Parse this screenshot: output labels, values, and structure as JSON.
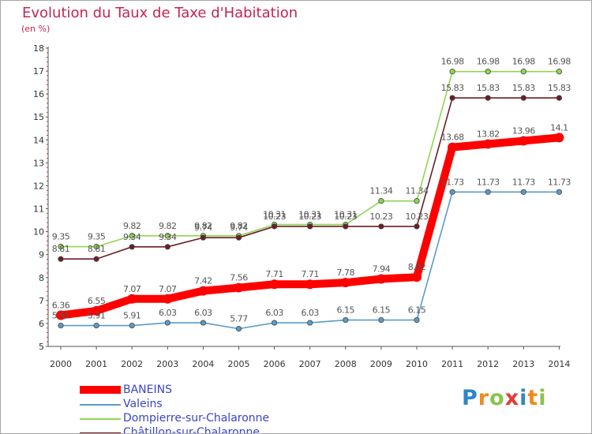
{
  "header": {
    "title": "Evolution du Taux de Taxe d'Habitation",
    "subtitle": "(en %)"
  },
  "logo": {
    "letters": [
      "P",
      "r",
      "o",
      "x",
      "i",
      "t",
      "i"
    ]
  },
  "chart_data": {
    "type": "line",
    "x": [
      "2000",
      "2001",
      "2002",
      "2003",
      "2004",
      "2005",
      "2006",
      "2007",
      "2008",
      "2009",
      "2010",
      "2011",
      "2012",
      "2013",
      "2014"
    ],
    "yticks": [
      "5",
      "6",
      "7",
      "8",
      "9",
      "10",
      "11",
      "12",
      "13",
      "14",
      "15",
      "16",
      "17",
      "18"
    ],
    "ylim": [
      5,
      18
    ],
    "grid": false,
    "legend_position": "bottom-left",
    "series": [
      {
        "name": "BANEINS",
        "color": "#ff0000",
        "values": [
          6.36,
          6.55,
          7.07,
          7.07,
          7.42,
          7.56,
          7.71,
          7.71,
          7.78,
          7.94,
          8.02,
          13.68,
          13.82,
          13.96,
          14.1
        ],
        "labels": [
          "6.36",
          "6.55",
          "7.07",
          "7.07",
          "7.42",
          "7.56",
          "7.71",
          "7.71",
          "7.78",
          "7.94",
          "8.02",
          "13.68",
          "13.82",
          "13.96",
          "14.1"
        ]
      },
      {
        "name": "Valeins",
        "color": "#5b9bc9",
        "values": [
          5.91,
          5.91,
          5.91,
          6.03,
          6.03,
          5.77,
          6.03,
          6.03,
          6.15,
          6.15,
          6.15,
          11.73,
          11.73,
          11.73,
          11.73
        ],
        "labels": [
          "5.91",
          "5.91",
          "5.91",
          "6.03",
          "6.03",
          "5.77",
          "6.03",
          "6.03",
          "6.15",
          "6.15",
          "6.15",
          "11.73",
          "11.73",
          "11.73",
          "11.73"
        ]
      },
      {
        "name": "Dompierre-sur-Chalaronne",
        "color": "#8fd653",
        "values": [
          9.35,
          9.35,
          9.82,
          9.82,
          9.82,
          9.82,
          10.31,
          10.31,
          10.31,
          11.34,
          11.34,
          16.98,
          16.98,
          16.98,
          16.98
        ],
        "labels": [
          "9.35",
          "9.35",
          "9.82",
          "9.82",
          "9.82",
          "9.82",
          "10.31",
          "10.31",
          "10.31",
          "11.34",
          "11.34",
          "16.98",
          "16.98",
          "16.98",
          "16.98"
        ]
      },
      {
        "name": "Châtillon-sur-Chalaronne",
        "color": "#6b1e24",
        "values": [
          8.81,
          8.81,
          9.34,
          9.34,
          9.74,
          9.74,
          10.23,
          10.23,
          10.23,
          10.23,
          10.23,
          15.83,
          15.83,
          15.83,
          15.83
        ],
        "labels": [
          "8.81",
          "8.81",
          "9.34",
          "9.34",
          "9.74",
          "9.74",
          "10.23",
          "10.23",
          "10.23",
          "10.23",
          "10.23",
          "15.83",
          "15.83",
          "15.83",
          "15.83"
        ]
      }
    ]
  }
}
